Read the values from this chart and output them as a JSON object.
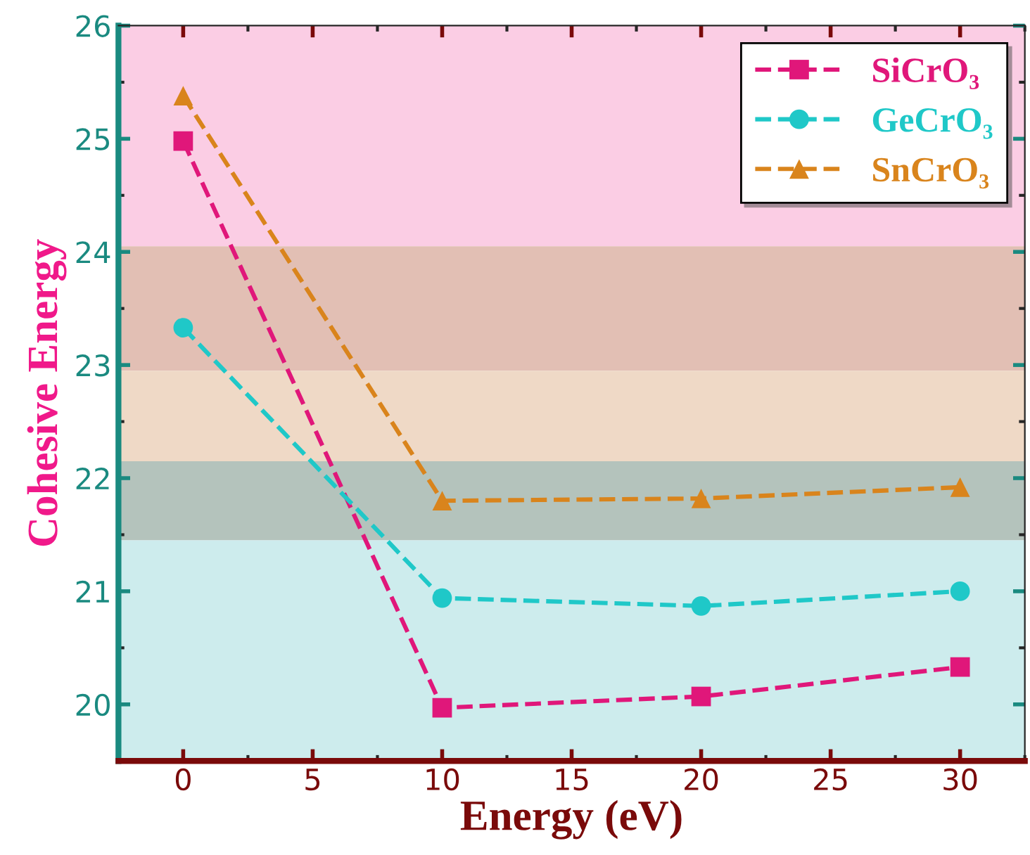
{
  "chart_data": {
    "type": "line",
    "xlabel": "Energy (eV)",
    "ylabel": "Cohesive Energy",
    "x": [
      0,
      10,
      20,
      30
    ],
    "series": [
      {
        "name": "SiCrO₃",
        "color": "#e0177a",
        "values": [
          24.98,
          19.97,
          20.07,
          20.33
        ],
        "marker": "square"
      },
      {
        "name": "GeCrO₃",
        "color": "#1fc8c8",
        "values": [
          23.33,
          20.94,
          20.87,
          21.0
        ],
        "marker": "circle"
      },
      {
        "name": "SnCrO₃",
        "color": "#d9841c",
        "values": [
          25.38,
          21.8,
          21.82,
          21.92
        ],
        "marker": "triangle"
      }
    ],
    "line_style": "dashed",
    "xlim": [
      -2.5,
      32.5
    ],
    "xticks": [
      0,
      5,
      10,
      15,
      20,
      25,
      30
    ],
    "ylim": [
      19.5,
      26
    ],
    "yticks": [
      20,
      21,
      22,
      23,
      24,
      25,
      26
    ],
    "bands": [
      {
        "axis": "y",
        "from": 24.05,
        "to": 26,
        "color": "#fbcde4"
      },
      {
        "axis": "y",
        "from": 22.95,
        "to": 24.05,
        "color": "#e2bfb4"
      },
      {
        "axis": "y",
        "from": 22.15,
        "to": 22.95,
        "color": "#efd9c6"
      },
      {
        "axis": "y",
        "from": 21.45,
        "to": 22.15,
        "color": "#b4c3bc"
      },
      {
        "axis": "y",
        "from": 19.5,
        "to": 21.45,
        "color": "#cdeced"
      }
    ],
    "grid": false,
    "legend": "top right"
  }
}
